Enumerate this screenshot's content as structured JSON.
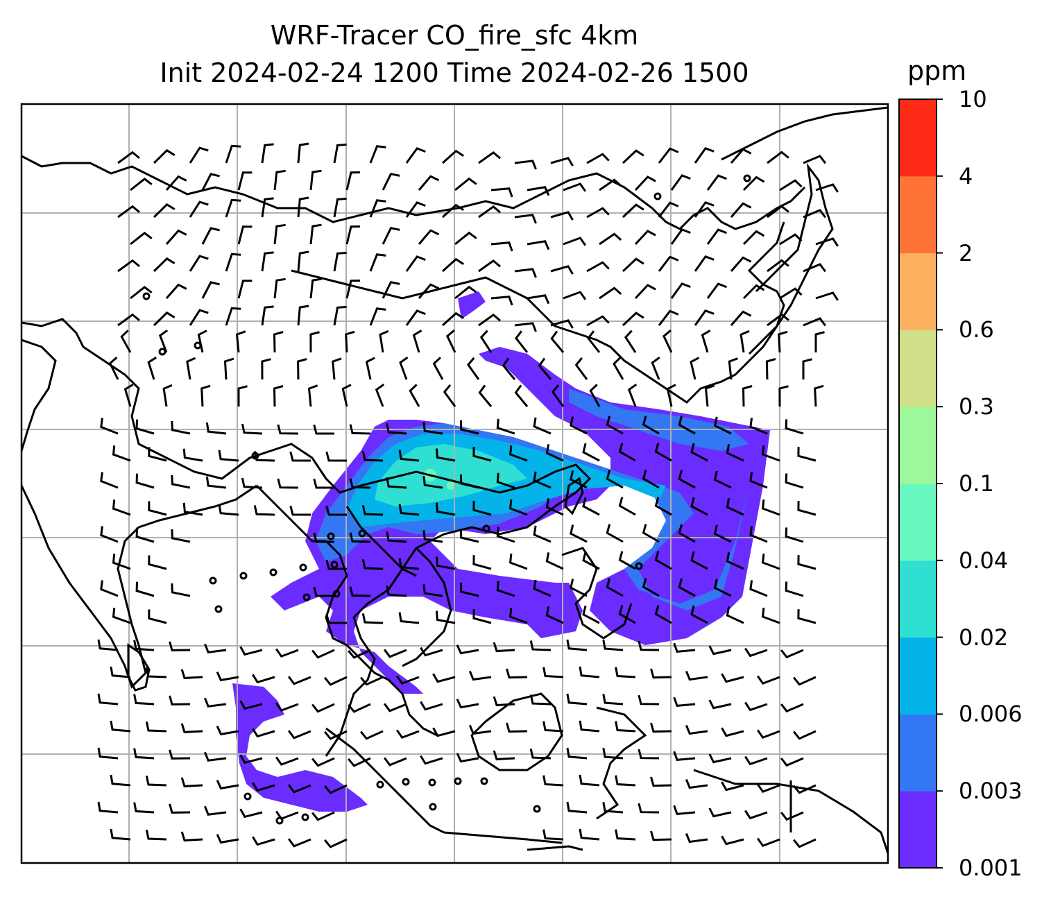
{
  "title": {
    "line1": "WRF-Tracer CO_fire_sfc 4km",
    "line2": "Init 2024-02-24 1200 Time 2024-02-26 1500"
  },
  "colorbar": {
    "unit": "ppm",
    "levels": [
      "0.001",
      "0.003",
      "0.006",
      "0.02",
      "0.04",
      "0.1",
      "0.3",
      "0.6",
      "2",
      "4",
      "10"
    ],
    "colors": [
      "#6a2cff",
      "#3377f2",
      "#03b3ea",
      "#2fe0d2",
      "#68f8bf",
      "#9cf89a",
      "#cfe088",
      "#fdb060",
      "#ff7238",
      "#ff2a16"
    ]
  },
  "map": {
    "gridlines": true,
    "wind_barbs": true
  }
}
